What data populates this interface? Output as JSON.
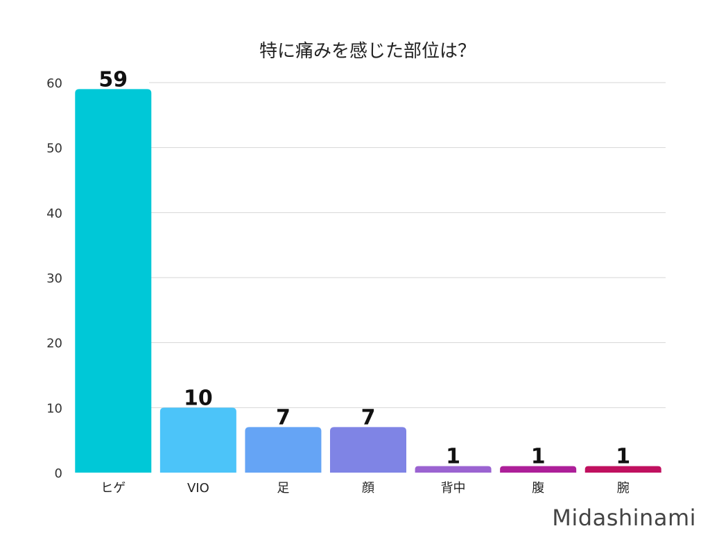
{
  "chart_data": {
    "type": "bar",
    "title": "特に痛みを感じた部位は？",
    "categories": [
      "ヒゲ",
      "VIO",
      "足",
      "顔",
      "背中",
      "腹",
      "腕"
    ],
    "values": [
      59,
      10,
      7,
      7,
      1,
      1,
      1
    ],
    "colors": [
      "#00c8d7",
      "#4cc4f9",
      "#65a4f5",
      "#7f84e5",
      "#9b63d1",
      "#ad1f99",
      "#c0105f"
    ],
    "ylim": [
      0,
      60
    ],
    "yticks": [
      0,
      10,
      20,
      30,
      40,
      50,
      60
    ],
    "grid": true,
    "data_labels": true
  },
  "watermark": "Midashinami"
}
